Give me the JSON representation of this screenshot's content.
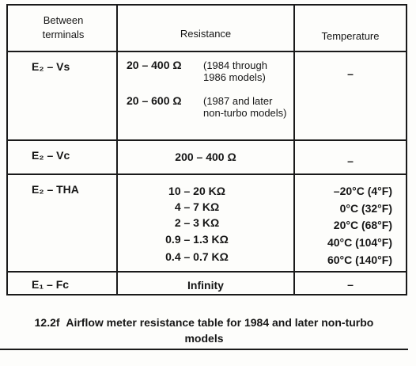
{
  "table": {
    "headers": [
      "Between terminals",
      "Resistance",
      "Temperature"
    ],
    "rows": [
      {
        "terminals": "E₂ – Vs",
        "resistance": [
          {
            "value": "20 – 400 Ω",
            "note": "(1984 through 1986 models)"
          },
          {
            "value": "20 – 600 Ω",
            "note": "(1987 and later non-turbo models)"
          }
        ],
        "temperature": [
          "–"
        ]
      },
      {
        "terminals": "E₂ – Vc",
        "resistance": [
          {
            "value": "200 – 400 Ω"
          }
        ],
        "temperature": [
          "–"
        ]
      },
      {
        "terminals": "E₂ – THA",
        "resistance": [
          {
            "value": "10 – 20 KΩ"
          },
          {
            "value": "4 – 7 KΩ"
          },
          {
            "value": "2 – 3 KΩ"
          },
          {
            "value": "0.9 – 1.3 KΩ"
          },
          {
            "value": "0.4 – 0.7 KΩ"
          }
        ],
        "temperature": [
          "–20°C (4°F)",
          "0°C (32°F)",
          "20°C (68°F)",
          "40°C (104°F)",
          "60°C (140°F)"
        ]
      },
      {
        "terminals": "E₁ – Fc",
        "resistance": [
          {
            "value": "Infinity"
          }
        ],
        "temperature": [
          "–"
        ]
      }
    ]
  },
  "caption": {
    "number": "12.2f",
    "text": "Airflow meter resistance table for 1984 and later non-turbo models"
  }
}
